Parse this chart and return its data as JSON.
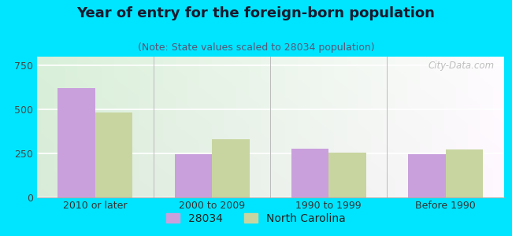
{
  "title": "Year of entry for the foreign-born population",
  "subtitle": "(Note: State values scaled to 28034 population)",
  "categories": [
    "2010 or later",
    "2000 to 2009",
    "1990 to 1999",
    "Before 1990"
  ],
  "values_28034": [
    620,
    245,
    275,
    245
  ],
  "values_nc": [
    480,
    330,
    255,
    270
  ],
  "bar_color_28034": "#c9a0dc",
  "bar_color_nc": "#c8d5a0",
  "background_outer": "#00e5ff",
  "ylim": [
    0,
    800
  ],
  "yticks": [
    0,
    250,
    500,
    750
  ],
  "legend_label_1": "28034",
  "legend_label_2": "North Carolina",
  "bar_width": 0.32,
  "title_fontsize": 13,
  "subtitle_fontsize": 9,
  "tick_fontsize": 9,
  "legend_fontsize": 10,
  "title_color": "#1a1a2e",
  "subtitle_color": "#555577"
}
